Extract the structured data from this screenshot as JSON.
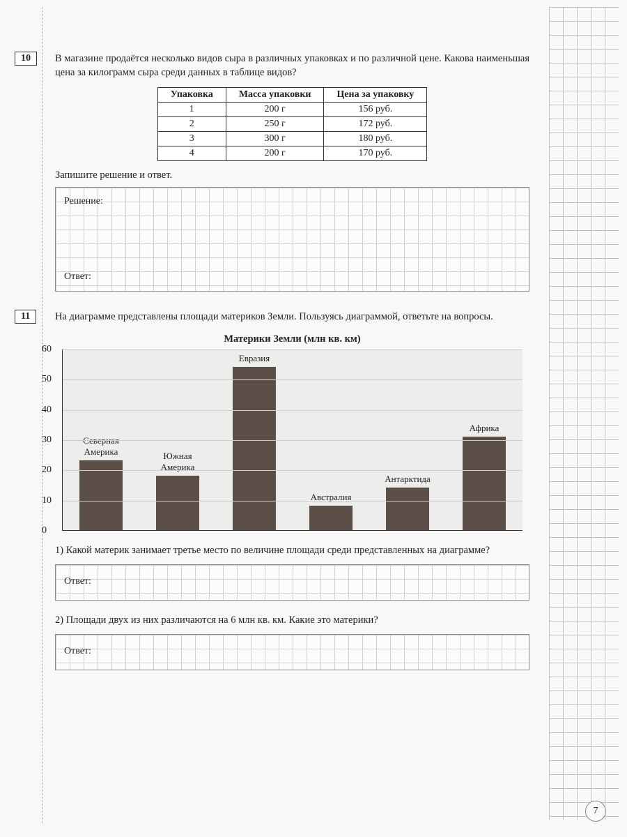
{
  "page_number": "7",
  "q10": {
    "number": "10",
    "text": "В магазине продаётся несколько видов сыра в различных упаковках и по различной цене. Какова наименьшая цена за килограмм сыра среди данных в таблице видов?",
    "table": {
      "headers": [
        "Упаковка",
        "Масса упаковки",
        "Цена за упаковку"
      ],
      "rows": [
        [
          "1",
          "200 г",
          "156 руб."
        ],
        [
          "2",
          "250 г",
          "172 руб."
        ],
        [
          "3",
          "300 г",
          "180 руб."
        ],
        [
          "4",
          "200 г",
          "170 руб."
        ]
      ]
    },
    "instruction": "Запишите решение и ответ.",
    "solution_label": "Решение:",
    "answer_label": "Ответ:"
  },
  "q11": {
    "number": "11",
    "text": "На диаграмме представлены площади материков Земли. Пользуясь диаграммой, ответьте на вопросы.",
    "chart": {
      "title": "Материки Земли (млн кв. км)",
      "type": "bar",
      "ylim": [
        0,
        60
      ],
      "ytick_step": 10,
      "yticks": [
        "0",
        "10",
        "20",
        "30",
        "40",
        "50",
        "60"
      ],
      "bar_color": "#5a4e47",
      "background_color": "#ededeb",
      "grid_color": "#cccccc",
      "categories": [
        "Северная Америка",
        "Южная Америка",
        "Евразия",
        "Австралия",
        "Антарктида",
        "Африка"
      ],
      "values": [
        23,
        18,
        54,
        8,
        14,
        31
      ],
      "label_above": [
        false,
        false,
        true,
        false,
        false,
        true
      ]
    },
    "sub1": "1) Какой материк занимает третье место по величине площади среди представленных на диаграмме?",
    "sub2": "2) Площади двух из них различаются на 6 млн кв. км. Какие это материки?",
    "answer_label": "Ответ:"
  }
}
